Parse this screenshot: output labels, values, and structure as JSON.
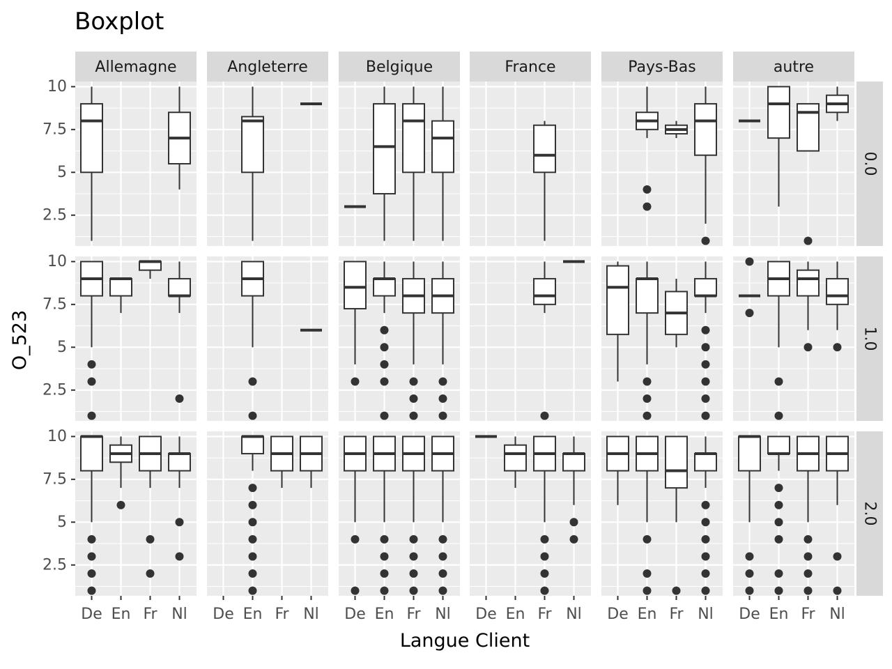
{
  "chart_data": {
    "type": "boxplot",
    "title": "Boxplot",
    "xlabel": "Langue Client",
    "ylabel": "O_523",
    "ylim": [
      0.7,
      10.3
    ],
    "yticks": [
      2.5,
      5,
      7.5,
      10
    ],
    "ytick_labels": [
      "2.5",
      "5",
      "7.5",
      "10"
    ],
    "categories": [
      "De",
      "En",
      "Fr",
      "Nl"
    ],
    "columns": [
      "Allemagne",
      "Angleterre",
      "Belgique",
      "France",
      "Pays-Bas",
      "autre"
    ],
    "rows": [
      "0.0",
      "1.0",
      "2.0"
    ],
    "grid": true,
    "panels": [
      {
        "row": "0.0",
        "col": "Allemagne",
        "boxes": [
          {
            "cat": "De",
            "whisker_low": 1,
            "q1": 5,
            "median": 8,
            "q3": 9,
            "whisker_high": 10,
            "outliers": []
          },
          {
            "cat": "Nl",
            "whisker_low": 4,
            "q1": 5.5,
            "median": 7,
            "q3": 8.5,
            "whisker_high": 10,
            "outliers": []
          }
        ]
      },
      {
        "row": "0.0",
        "col": "Angleterre",
        "boxes": [
          {
            "cat": "En",
            "whisker_low": 1,
            "q1": 5,
            "median": 8,
            "q3": 8.25,
            "whisker_high": 10,
            "outliers": []
          },
          {
            "cat": "Nl",
            "whisker_low": 9,
            "q1": 9,
            "median": 9,
            "q3": 9,
            "whisker_high": 9,
            "outliers": []
          }
        ]
      },
      {
        "row": "0.0",
        "col": "Belgique",
        "boxes": [
          {
            "cat": "De",
            "whisker_low": 3,
            "q1": 3,
            "median": 3,
            "q3": 3,
            "whisker_high": 3,
            "outliers": []
          },
          {
            "cat": "En",
            "whisker_low": 1,
            "q1": 3.75,
            "median": 6.5,
            "q3": 9,
            "whisker_high": 10,
            "outliers": []
          },
          {
            "cat": "Fr",
            "whisker_low": 1,
            "q1": 5,
            "median": 8,
            "q3": 9,
            "whisker_high": 10,
            "outliers": []
          },
          {
            "cat": "Nl",
            "whisker_low": 1,
            "q1": 5,
            "median": 7,
            "q3": 8,
            "whisker_high": 10,
            "outliers": []
          }
        ]
      },
      {
        "row": "0.0",
        "col": "France",
        "boxes": [
          {
            "cat": "Fr",
            "whisker_low": 1,
            "q1": 5,
            "median": 6,
            "q3": 7.75,
            "whisker_high": 8,
            "outliers": []
          }
        ]
      },
      {
        "row": "0.0",
        "col": "Pays-Bas",
        "boxes": [
          {
            "cat": "En",
            "whisker_low": 7,
            "q1": 7.5,
            "median": 8,
            "q3": 8.5,
            "whisker_high": 10,
            "outliers": [
              4,
              3
            ]
          },
          {
            "cat": "Fr",
            "whisker_low": 7,
            "q1": 7.25,
            "median": 7.5,
            "q3": 7.75,
            "whisker_high": 8,
            "outliers": []
          },
          {
            "cat": "Nl",
            "whisker_low": 2,
            "q1": 6,
            "median": 8,
            "q3": 9,
            "whisker_high": 10,
            "outliers": [
              1
            ]
          }
        ]
      },
      {
        "row": "0.0",
        "col": "autre",
        "boxes": [
          {
            "cat": "De",
            "whisker_low": 8,
            "q1": 8,
            "median": 8,
            "q3": 8,
            "whisker_high": 8,
            "outliers": []
          },
          {
            "cat": "En",
            "whisker_low": 3,
            "q1": 7,
            "median": 9,
            "q3": 10,
            "whisker_high": 10,
            "outliers": []
          },
          {
            "cat": "Fr",
            "whisker_low": 6.25,
            "q1": 6.25,
            "median": 8.5,
            "q3": 9,
            "whisker_high": 9,
            "outliers": [
              1
            ]
          },
          {
            "cat": "Nl",
            "whisker_low": 8,
            "q1": 8.5,
            "median": 9,
            "q3": 9.5,
            "whisker_high": 10,
            "outliers": []
          }
        ]
      },
      {
        "row": "1.0",
        "col": "Allemagne",
        "boxes": [
          {
            "cat": "De",
            "whisker_low": 5,
            "q1": 8,
            "median": 9,
            "q3": 10,
            "whisker_high": 10,
            "outliers": [
              4,
              3,
              1
            ]
          },
          {
            "cat": "En",
            "whisker_low": 7,
            "q1": 8,
            "median": 9,
            "q3": 9,
            "whisker_high": 9,
            "outliers": []
          },
          {
            "cat": "Fr",
            "whisker_low": 9,
            "q1": 9.5,
            "median": 10,
            "q3": 10,
            "whisker_high": 10,
            "outliers": []
          },
          {
            "cat": "Nl",
            "whisker_low": 7,
            "q1": 8,
            "median": 8,
            "q3": 9,
            "whisker_high": 10,
            "outliers": [
              2
            ]
          }
        ]
      },
      {
        "row": "1.0",
        "col": "Angleterre",
        "boxes": [
          {
            "cat": "En",
            "whisker_low": 5,
            "q1": 8,
            "median": 9,
            "q3": 10,
            "whisker_high": 10,
            "outliers": [
              3,
              1
            ]
          },
          {
            "cat": "Nl",
            "whisker_low": 6,
            "q1": 6,
            "median": 6,
            "q3": 6,
            "whisker_high": 6,
            "outliers": []
          }
        ]
      },
      {
        "row": "1.0",
        "col": "Belgique",
        "boxes": [
          {
            "cat": "De",
            "whisker_low": 4,
            "q1": 7.25,
            "median": 8.5,
            "q3": 10,
            "whisker_high": 10,
            "outliers": [
              3
            ]
          },
          {
            "cat": "En",
            "whisker_low": 7,
            "q1": 8,
            "median": 9,
            "q3": 9,
            "whisker_high": 10,
            "outliers": [
              6,
              5,
              4,
              3,
              1
            ]
          },
          {
            "cat": "Fr",
            "whisker_low": 4,
            "q1": 7,
            "median": 8,
            "q3": 9,
            "whisker_high": 10,
            "outliers": [
              3,
              2,
              1
            ]
          },
          {
            "cat": "Nl",
            "whisker_low": 4,
            "q1": 7,
            "median": 8,
            "q3": 9,
            "whisker_high": 10,
            "outliers": [
              3,
              2,
              1
            ]
          }
        ]
      },
      {
        "row": "1.0",
        "col": "France",
        "boxes": [
          {
            "cat": "Fr",
            "whisker_low": 7,
            "q1": 7.5,
            "median": 8,
            "q3": 9,
            "whisker_high": 10,
            "outliers": [
              1
            ]
          },
          {
            "cat": "Nl",
            "whisker_low": 10,
            "q1": 10,
            "median": 10,
            "q3": 10,
            "whisker_high": 10,
            "outliers": []
          }
        ]
      },
      {
        "row": "1.0",
        "col": "Pays-Bas",
        "boxes": [
          {
            "cat": "De",
            "whisker_low": 3,
            "q1": 5.75,
            "median": 8.5,
            "q3": 9.75,
            "whisker_high": 10,
            "outliers": []
          },
          {
            "cat": "En",
            "whisker_low": 4,
            "q1": 7,
            "median": 9,
            "q3": 9,
            "whisker_high": 10,
            "outliers": [
              3,
              2,
              1
            ]
          },
          {
            "cat": "Fr",
            "whisker_low": 5,
            "q1": 5.75,
            "median": 7,
            "q3": 8.25,
            "whisker_high": 9,
            "outliers": []
          },
          {
            "cat": "Nl",
            "whisker_low": 7,
            "q1": 8,
            "median": 8,
            "q3": 9,
            "whisker_high": 10,
            "outliers": [
              6,
              5,
              4,
              3,
              2,
              1
            ]
          }
        ]
      },
      {
        "row": "1.0",
        "col": "autre",
        "boxes": [
          {
            "cat": "De",
            "whisker_low": 8,
            "q1": 8,
            "median": 8,
            "q3": 8,
            "whisker_high": 8,
            "outliers": [
              10,
              7
            ]
          },
          {
            "cat": "En",
            "whisker_low": 5,
            "q1": 8,
            "median": 9,
            "q3": 10,
            "whisker_high": 10,
            "outliers": [
              3,
              1
            ]
          },
          {
            "cat": "Fr",
            "whisker_low": 6,
            "q1": 8,
            "median": 9,
            "q3": 9.5,
            "whisker_high": 10,
            "outliers": [
              5
            ]
          },
          {
            "cat": "Nl",
            "whisker_low": 6,
            "q1": 7.5,
            "median": 8,
            "q3": 9,
            "whisker_high": 10,
            "outliers": [
              5
            ]
          }
        ]
      },
      {
        "row": "2.0",
        "col": "Allemagne",
        "boxes": [
          {
            "cat": "De",
            "whisker_low": 5,
            "q1": 8,
            "median": 10,
            "q3": 10,
            "whisker_high": 10,
            "outliers": [
              4,
              3,
              2,
              1
            ]
          },
          {
            "cat": "En",
            "whisker_low": 7,
            "q1": 8.5,
            "median": 9,
            "q3": 9.5,
            "whisker_high": 10,
            "outliers": [
              6
            ]
          },
          {
            "cat": "Fr",
            "whisker_low": 7,
            "q1": 8,
            "median": 9,
            "q3": 10,
            "whisker_high": 10,
            "outliers": [
              4,
              2
            ]
          },
          {
            "cat": "Nl",
            "whisker_low": 7,
            "q1": 8,
            "median": 9,
            "q3": 9,
            "whisker_high": 10,
            "outliers": [
              5,
              3
            ]
          }
        ]
      },
      {
        "row": "2.0",
        "col": "Angleterre",
        "boxes": [
          {
            "cat": "En",
            "whisker_low": 8,
            "q1": 9,
            "median": 10,
            "q3": 10,
            "whisker_high": 10,
            "outliers": [
              7,
              6,
              5,
              4,
              3,
              2,
              1
            ]
          },
          {
            "cat": "Fr",
            "whisker_low": 7,
            "q1": 8,
            "median": 9,
            "q3": 10,
            "whisker_high": 10,
            "outliers": []
          },
          {
            "cat": "Nl",
            "whisker_low": 7,
            "q1": 8,
            "median": 9,
            "q3": 10,
            "whisker_high": 10,
            "outliers": []
          }
        ]
      },
      {
        "row": "2.0",
        "col": "Belgique",
        "boxes": [
          {
            "cat": "De",
            "whisker_low": 5,
            "q1": 8,
            "median": 9,
            "q3": 10,
            "whisker_high": 10,
            "outliers": [
              4,
              1
            ]
          },
          {
            "cat": "En",
            "whisker_low": 5,
            "q1": 8,
            "median": 9,
            "q3": 10,
            "whisker_high": 10,
            "outliers": [
              4,
              3,
              2,
              1
            ]
          },
          {
            "cat": "Fr",
            "whisker_low": 5,
            "q1": 8,
            "median": 9,
            "q3": 10,
            "whisker_high": 10,
            "outliers": [
              4,
              3,
              2,
              1
            ]
          },
          {
            "cat": "Nl",
            "whisker_low": 5,
            "q1": 8,
            "median": 9,
            "q3": 10,
            "whisker_high": 10,
            "outliers": [
              4,
              3,
              2,
              1
            ]
          }
        ]
      },
      {
        "row": "2.0",
        "col": "France",
        "boxes": [
          {
            "cat": "De",
            "whisker_low": 10,
            "q1": 10,
            "median": 10,
            "q3": 10,
            "whisker_high": 10,
            "outliers": []
          },
          {
            "cat": "En",
            "whisker_low": 7,
            "q1": 8,
            "median": 9,
            "q3": 9.5,
            "whisker_high": 10,
            "outliers": []
          },
          {
            "cat": "Fr",
            "whisker_low": 5,
            "q1": 8,
            "median": 9,
            "q3": 10,
            "whisker_high": 10,
            "outliers": [
              4,
              3,
              2,
              1
            ]
          },
          {
            "cat": "Nl",
            "whisker_low": 6,
            "q1": 8,
            "median": 9,
            "q3": 9,
            "whisker_high": 10,
            "outliers": [
              5,
              4
            ]
          }
        ]
      },
      {
        "row": "2.0",
        "col": "Pays-Bas",
        "boxes": [
          {
            "cat": "De",
            "whisker_low": 6,
            "q1": 8,
            "median": 9,
            "q3": 10,
            "whisker_high": 10,
            "outliers": []
          },
          {
            "cat": "En",
            "whisker_low": 5,
            "q1": 8,
            "median": 9,
            "q3": 10,
            "whisker_high": 10,
            "outliers": [
              4,
              2,
              1
            ]
          },
          {
            "cat": "Fr",
            "whisker_low": 5,
            "q1": 7,
            "median": 8,
            "q3": 10,
            "whisker_high": 10,
            "outliers": [
              1
            ]
          },
          {
            "cat": "Nl",
            "whisker_low": 7,
            "q1": 8,
            "median": 9,
            "q3": 9,
            "whisker_high": 10,
            "outliers": [
              6,
              5,
              4,
              3,
              2,
              1
            ]
          }
        ]
      },
      {
        "row": "2.0",
        "col": "autre",
        "boxes": [
          {
            "cat": "De",
            "whisker_low": 5,
            "q1": 8,
            "median": 10,
            "q3": 10,
            "whisker_high": 10,
            "outliers": [
              3,
              2,
              1
            ]
          },
          {
            "cat": "En",
            "whisker_low": 8,
            "q1": 9,
            "median": 9,
            "q3": 10,
            "whisker_high": 10,
            "outliers": [
              7,
              6,
              5,
              4,
              2,
              1
            ]
          },
          {
            "cat": "Fr",
            "whisker_low": 5,
            "q1": 8,
            "median": 9,
            "q3": 10,
            "whisker_high": 10,
            "outliers": [
              4,
              3,
              2,
              1
            ]
          },
          {
            "cat": "Nl",
            "whisker_low": 6,
            "q1": 8,
            "median": 9,
            "q3": 10,
            "whisker_high": 10,
            "outliers": [
              3,
              1
            ]
          }
        ]
      }
    ]
  },
  "colors": {
    "panel_background": "#ebebeb",
    "grid": "#ffffff",
    "strip_background": "#d9d9d9",
    "box_fill": "#ffffff",
    "box_stroke": "#333333",
    "outlier": "#333333"
  }
}
